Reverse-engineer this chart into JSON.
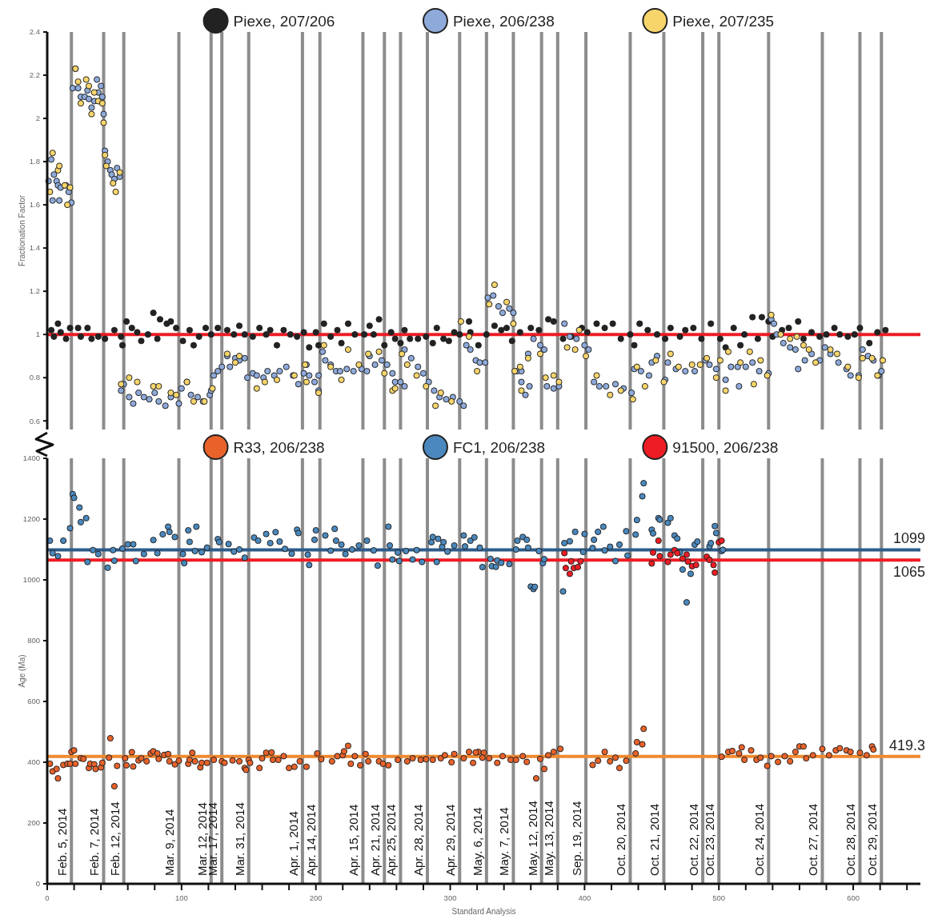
{
  "chart_data": [
    {
      "type": "scatter",
      "ylabel": "Fractionation Factor",
      "xlim": [
        0,
        650
      ],
      "ylim": [
        0.56,
        2.4
      ],
      "yticks": [
        0.6,
        0.8,
        1,
        1.2,
        1.4,
        1.6,
        1.8,
        2,
        2.2,
        2.4
      ],
      "tick_labels": "y",
      "marker": "circle",
      "legend": "top",
      "ref_lines": [
        {
          "axis": "x",
          "value": 18,
          "color": "#8c8c8c"
        },
        {
          "axis": "x",
          "value": 42,
          "color": "#8c8c8c"
        },
        {
          "axis": "x",
          "value": 57,
          "color": "#8c8c8c"
        },
        {
          "axis": "x",
          "value": 98,
          "color": "#8c8c8c"
        },
        {
          "axis": "x",
          "value": 122,
          "color": "#8c8c8c"
        },
        {
          "axis": "x",
          "value": 130,
          "color": "#8c8c8c"
        },
        {
          "axis": "x",
          "value": 150,
          "color": "#8c8c8c"
        },
        {
          "axis": "x",
          "value": 190,
          "color": "#8c8c8c"
        },
        {
          "axis": "x",
          "value": 203,
          "color": "#8c8c8c"
        },
        {
          "axis": "x",
          "value": 235,
          "color": "#8c8c8c"
        },
        {
          "axis": "x",
          "value": 251,
          "color": "#8c8c8c"
        },
        {
          "axis": "x",
          "value": 263,
          "color": "#8c8c8c"
        },
        {
          "axis": "x",
          "value": 283,
          "color": "#8c8c8c"
        },
        {
          "axis": "x",
          "value": 307,
          "color": "#8c8c8c"
        },
        {
          "axis": "x",
          "value": 327,
          "color": "#8c8c8c"
        },
        {
          "axis": "x",
          "value": 347,
          "color": "#8c8c8c"
        },
        {
          "axis": "x",
          "value": 368,
          "color": "#8c8c8c"
        },
        {
          "axis": "x",
          "value": 380,
          "color": "#8c8c8c"
        },
        {
          "axis": "x",
          "value": 401,
          "color": "#8c8c8c"
        },
        {
          "axis": "x",
          "value": 434,
          "color": "#8c8c8c"
        },
        {
          "axis": "x",
          "value": 459,
          "color": "#8c8c8c"
        },
        {
          "axis": "x",
          "value": 488,
          "color": "#8c8c8c"
        },
        {
          "axis": "x",
          "value": 500,
          "color": "#8c8c8c"
        },
        {
          "axis": "x",
          "value": 537,
          "color": "#8c8c8c"
        },
        {
          "axis": "x",
          "value": 577,
          "color": "#8c8c8c"
        },
        {
          "axis": "x",
          "value": 605,
          "color": "#8c8c8c"
        },
        {
          "axis": "x",
          "value": 621,
          "color": "#8c8c8c"
        },
        {
          "axis": "y",
          "value": 1,
          "color": "#ee1c24"
        }
      ],
      "series": [
        {
          "name": "Piexe, 207/206",
          "color": "#222222",
          "x": [
            3,
            5,
            8,
            10,
            14,
            17,
            23,
            25,
            30,
            33,
            38,
            43,
            50,
            55,
            56,
            59,
            63,
            67,
            70,
            75,
            79,
            82,
            84,
            89,
            92,
            96,
            101,
            106,
            109,
            113,
            118,
            122,
            127,
            134,
            139,
            143,
            147,
            153,
            158,
            163,
            166,
            171,
            176,
            181,
            186,
            191,
            195,
            200,
            202,
            206,
            211,
            216,
            219,
            224,
            229,
            236,
            240,
            243,
            247,
            251,
            256,
            259,
            263,
            266,
            270,
            276,
            282,
            287,
            290,
            295,
            299,
            303,
            307,
            314,
            315,
            321,
            327,
            333,
            338,
            342,
            346,
            352,
            360,
            366,
            373,
            377,
            384,
            390,
            398,
            402,
            409,
            415,
            421,
            427,
            434,
            437,
            441,
            447,
            454,
            460,
            464,
            471,
            475,
            481,
            487,
            494,
            501,
            505,
            511,
            516,
            519,
            525,
            529,
            532,
            537,
            540,
            547,
            552,
            559,
            563,
            569,
            575,
            580,
            586,
            590,
            596,
            601,
            605,
            612,
            618,
            624
          ],
          "values": [
            1.02,
            0.99,
            1.05,
            1.01,
            0.98,
            1.03,
            1.03,
            0.99,
            1.03,
            0.98,
            0.99,
            0.98,
            1.02,
            0.99,
            0.95,
            1.06,
            1.03,
            1.01,
            0.97,
            1.0,
            1.1,
            0.98,
            1.07,
            1.05,
            1.06,
            1.03,
            0.97,
            1.02,
            0.95,
            0.99,
            1.03,
            1.0,
            1.03,
            1.02,
            1.0,
            1.04,
            1.0,
            0.99,
            1.03,
            1.0,
            1.02,
            0.95,
            1.02,
            1.0,
            0.99,
            1.01,
            0.94,
            1.01,
            0.95,
            1.05,
            0.99,
            1.02,
            0.96,
            1.05,
            1.0,
            1.0,
            1.04,
            1.0,
            1.07,
            0.95,
            1.01,
            0.98,
            0.96,
            1.02,
            0.98,
            0.98,
            0.99,
            0.96,
            1.03,
            0.98,
            0.97,
            1.01,
            1.0,
            1.06,
            1.01,
            0.95,
            1.0,
            1.04,
            1.02,
            1.03,
            0.97,
            1.01,
            1.03,
            1.02,
            1.07,
            1.06,
            0.98,
            0.99,
            1.03,
            1.01,
            1.05,
            1.03,
            1.05,
            0.98,
            1.0,
            0.95,
            1.05,
            1.02,
            1.0,
            0.98,
            1.03,
            0.99,
            1.02,
            1.03,
            0.98,
            1.05,
            0.98,
            0.94,
            1.03,
            0.95,
            1.0,
            1.08,
            0.98,
            1.08,
            1.06,
            0.99,
            1.02,
            1.03,
            1.06,
            0.98,
            1.01,
            0.99,
            1.0,
            1.03,
            1.0,
            0.99,
            1.0,
            1.03,
            0.96,
            1.01,
            1.02
          ]
        },
        {
          "name": "Piexe, 206/238",
          "color": "#8eaadb",
          "x": [
            1,
            3,
            5,
            7,
            4,
            8,
            9,
            10,
            14,
            16,
            18,
            21,
            19,
            23,
            25,
            28,
            30,
            31,
            33,
            35,
            37,
            38,
            40,
            41,
            42,
            43,
            45,
            47,
            48,
            50,
            52,
            54,
            55,
            57,
            61,
            64,
            68,
            72,
            76,
            80,
            83,
            88,
            92,
            98,
            100,
            104,
            107,
            112,
            116,
            121,
            122,
            124,
            127,
            130,
            134,
            136,
            140,
            143,
            147,
            149,
            153,
            156,
            161,
            164,
            169,
            173,
            178,
            183,
            187,
            191,
            193,
            195,
            199,
            202,
            202,
            205,
            207,
            211,
            215,
            218,
            223,
            228,
            234,
            238,
            240,
            244,
            249,
            253,
            257,
            259,
            263,
            266,
            266,
            271,
            276,
            280,
            284,
            288,
            292,
            297,
            302,
            307,
            310,
            312,
            315,
            319,
            322,
            326,
            328,
            332,
            336,
            339,
            344,
            347,
            350,
            353,
            356,
            353,
            359,
            358,
            362,
            367,
            370,
            372,
            377,
            381,
            385,
            389,
            394,
            400,
            403,
            407,
            411,
            416,
            423,
            429,
            435,
            437,
            442,
            448,
            450,
            454,
            460,
            462,
            468,
            475,
            482,
            490,
            493,
            498,
            505,
            509,
            514,
            515,
            520,
            525,
            530,
            537,
            539,
            541,
            543,
            548,
            553,
            557,
            559,
            564,
            569,
            575,
            579,
            583,
            589,
            595,
            598,
            604,
            607,
            611,
            615,
            619,
            621
          ],
          "values": [
            1.71,
            1.81,
            1.74,
            1.71,
            1.62,
            1.69,
            1.62,
            1.68,
            1.69,
            1.66,
            1.61,
            2.23,
            2.14,
            2.14,
            2.1,
            2.1,
            2.13,
            2.09,
            2.05,
            2.08,
            2.18,
            2.12,
            2.15,
            2.1,
            2.02,
            1.85,
            1.8,
            1.76,
            1.74,
            1.72,
            1.77,
            1.73,
            0.74,
            0.77,
            0.71,
            0.68,
            0.73,
            0.71,
            0.7,
            0.73,
            0.69,
            0.67,
            0.71,
            0.68,
            0.75,
            0.78,
            0.72,
            0.71,
            0.69,
            0.72,
            0.74,
            0.81,
            0.83,
            0.85,
            0.9,
            0.85,
            0.89,
            0.88,
            0.89,
            0.8,
            0.82,
            0.81,
            0.8,
            0.83,
            0.81,
            0.83,
            0.85,
            0.81,
            0.77,
            0.82,
            0.86,
            0.81,
            0.78,
            0.81,
            0.74,
            0.92,
            0.88,
            0.86,
            0.83,
            0.83,
            0.84,
            0.83,
            0.84,
            0.83,
            0.9,
            0.86,
            0.88,
            0.86,
            0.82,
            0.78,
            0.78,
            0.76,
            0.93,
            0.89,
            0.85,
            0.82,
            0.78,
            0.74,
            0.71,
            0.7,
            0.71,
            0.69,
            0.67,
            0.95,
            0.93,
            0.88,
            0.87,
            0.87,
            1.17,
            1.18,
            1.13,
            1.1,
            1.12,
            1.1,
            0.83,
            0.83,
            0.72,
            0.78,
            0.76,
            0.91,
            0.98,
            0.95,
            0.93,
            0.76,
            0.75,
            0.76,
            1.05,
            0.99,
            0.98,
            0.95,
            0.93,
            0.78,
            0.76,
            0.76,
            0.77,
            0.75,
            0.73,
            0.84,
            0.83,
            0.81,
            0.87,
            0.9,
            0.79,
            0.87,
            0.84,
            0.83,
            0.83,
            0.88,
            0.86,
            0.84,
            0.79,
            0.85,
            0.85,
            0.76,
            0.85,
            0.87,
            0.83,
            0.82,
            1.07,
            1.05,
            1.0,
            0.96,
            0.94,
            0.93,
            0.84,
            0.88,
            0.91,
            0.88,
            0.94,
            0.91,
            0.87,
            0.84,
            0.81,
            0.81,
            0.93,
            0.9,
            0.88,
            0.81,
            0.83
          ]
        },
        {
          "name": "Piexe, 207/235",
          "color": "#f7d56b",
          "x": [
            4,
            2,
            8,
            9,
            13,
            15,
            17,
            21,
            23,
            25,
            29,
            31,
            33,
            35,
            38,
            41,
            42,
            43,
            44,
            49,
            51,
            54,
            55,
            61,
            67,
            79,
            83,
            92,
            96,
            104,
            109,
            117,
            123,
            134,
            140,
            143,
            156,
            162,
            171,
            184,
            192,
            193,
            202,
            206,
            211,
            219,
            224,
            232,
            239,
            247,
            251,
            257,
            259,
            264,
            268,
            275,
            282,
            289,
            293,
            301,
            308,
            314,
            320,
            329,
            333,
            342,
            347,
            348,
            352,
            353,
            358,
            367,
            371,
            377,
            381,
            387,
            393,
            396,
            401,
            409,
            419,
            427,
            436,
            439,
            445,
            453,
            459,
            464,
            470,
            480,
            486,
            491,
            498,
            501,
            505,
            507,
            516,
            523,
            526,
            531,
            536,
            539,
            546,
            553,
            558,
            563,
            567,
            572,
            583,
            588,
            596,
            604,
            607,
            614,
            618,
            622
          ],
          "values": [
            1.84,
            1.66,
            1.76,
            1.78,
            1.69,
            1.6,
            1.68,
            2.23,
            2.17,
            2.07,
            2.18,
            2.15,
            2.02,
            2.12,
            2.08,
            2.07,
            1.98,
            1.83,
            1.78,
            1.7,
            1.66,
            1.75,
            0.77,
            0.8,
            0.78,
            0.76,
            0.76,
            0.73,
            0.72,
            0.78,
            0.69,
            0.69,
            0.75,
            0.91,
            0.87,
            0.9,
            0.75,
            0.78,
            0.79,
            0.81,
            0.86,
            0.78,
            0.73,
            0.95,
            0.85,
            0.79,
            0.93,
            0.86,
            0.91,
            0.92,
            0.82,
            0.74,
            0.75,
            0.91,
            0.86,
            0.81,
            0.76,
            0.67,
            0.73,
            0.69,
            1.06,
            0.99,
            0.83,
            1.14,
            1.23,
            1.15,
            1.05,
            0.83,
            0.85,
            0.74,
            0.89,
            0.91,
            0.8,
            0.81,
            0.78,
            0.94,
            0.93,
            1.02,
            0.9,
            0.81,
            0.72,
            0.74,
            0.7,
            0.85,
            0.76,
            0.88,
            0.78,
            0.91,
            0.85,
            0.86,
            0.86,
            0.89,
            0.8,
            0.88,
            0.74,
            0.92,
            0.87,
            0.92,
            0.77,
            0.88,
            0.81,
            1.09,
            1.0,
            0.98,
            0.99,
            0.95,
            0.93,
            0.87,
            0.93,
            0.91,
            0.85,
            0.8,
            0.89,
            0.89,
            0.81,
            0.88
          ]
        }
      ]
    },
    {
      "type": "scatter",
      "xlabel": "Standard Analysis",
      "ylabel": "Age (Ma)",
      "xlim": [
        0,
        650
      ],
      "ylim": [
        0,
        1400
      ],
      "yticks": [
        0,
        200,
        400,
        600,
        800,
        1000,
        1200,
        1400
      ],
      "xticks": [
        0,
        {
          "value": 20,
          "label": null
        },
        {
          "value": 40,
          "label": null
        },
        {
          "value": 60,
          "label": null
        },
        {
          "value": 80,
          "label": null
        },
        100,
        {
          "value": 120,
          "label": null
        },
        {
          "value": 140,
          "label": null
        },
        {
          "value": 160,
          "label": null
        },
        {
          "value": 180,
          "label": null
        },
        200,
        {
          "value": 220,
          "label": null
        },
        {
          "value": 240,
          "label": null
        },
        {
          "value": 260,
          "label": null
        },
        {
          "value": 280,
          "label": null
        },
        300,
        {
          "value": 320,
          "label": null
        },
        {
          "value": 340,
          "label": null
        },
        {
          "value": 360,
          "label": null
        },
        {
          "value": 380,
          "label": null
        },
        400,
        {
          "value": 420,
          "label": null
        },
        {
          "value": 440,
          "label": null
        },
        {
          "value": 460,
          "label": null
        },
        {
          "value": 480,
          "label": null
        },
        500,
        {
          "value": 520,
          "label": null
        },
        {
          "value": 540,
          "label": null
        },
        {
          "value": 560,
          "label": null
        },
        {
          "value": 580,
          "label": null
        },
        600,
        {
          "value": 620,
          "label": null
        },
        {
          "value": 640,
          "label": null
        }
      ],
      "marker": "circle",
      "legend": "top",
      "ref_lines": [
        {
          "axis": "x",
          "value": 18,
          "label": "Feb. 5, 2014",
          "color": "#8c8c8c"
        },
        {
          "axis": "x",
          "value": 42,
          "label": "Feb. 7, 2014",
          "color": "#8c8c8c"
        },
        {
          "axis": "x",
          "value": 57,
          "label": "Feb. 12, 2014",
          "color": "#8c8c8c"
        },
        {
          "axis": "x",
          "value": 98,
          "label": "Mar. 9, 2014",
          "color": "#8c8c8c"
        },
        {
          "axis": "x",
          "value": 122,
          "label": "Mar. 12, 2014",
          "color": "#8c8c8c"
        },
        {
          "axis": "x",
          "value": 130,
          "label": "Mar. 17, 2014",
          "color": "#8c8c8c"
        },
        {
          "axis": "x",
          "value": 150,
          "label": "Mar. 31, 2014",
          "color": "#8c8c8c"
        },
        {
          "axis": "x",
          "value": 190,
          "label": "Apr. 1, 2014",
          "color": "#8c8c8c"
        },
        {
          "axis": "x",
          "value": 203,
          "label": "Apr. 14, 2014",
          "color": "#8c8c8c"
        },
        {
          "axis": "x",
          "value": 235,
          "label": "Apr. 15, 2014",
          "color": "#8c8c8c"
        },
        {
          "axis": "x",
          "value": 251,
          "label": "Apr. 21, 2014",
          "color": "#8c8c8c"
        },
        {
          "axis": "x",
          "value": 263,
          "label": "Apr. 25, 2014",
          "color": "#8c8c8c"
        },
        {
          "axis": "x",
          "value": 283,
          "label": "Apr. 28, 2014",
          "color": "#8c8c8c"
        },
        {
          "axis": "x",
          "value": 307,
          "label": "Apr. 29, 2014",
          "color": "#8c8c8c"
        },
        {
          "axis": "x",
          "value": 327,
          "label": "May. 6, 2014",
          "color": "#8c8c8c"
        },
        {
          "axis": "x",
          "value": 347,
          "label": "May. 7, 2014",
          "color": "#8c8c8c"
        },
        {
          "axis": "x",
          "value": 368,
          "label": "May. 12, 2014",
          "color": "#8c8c8c"
        },
        {
          "axis": "x",
          "value": 380,
          "label": "May. 13, 2014",
          "color": "#8c8c8c"
        },
        {
          "axis": "x",
          "value": 401,
          "label": "Sep. 19, 2014",
          "color": "#8c8c8c"
        },
        {
          "axis": "x",
          "value": 434,
          "label": "Oct. 20, 2014",
          "color": "#8c8c8c"
        },
        {
          "axis": "x",
          "value": 459,
          "label": "Oct. 21, 2014",
          "color": "#8c8c8c"
        },
        {
          "axis": "x",
          "value": 488,
          "label": "Oct. 22, 2014",
          "color": "#8c8c8c"
        },
        {
          "axis": "x",
          "value": 500,
          "label": "Oct. 23, 2014",
          "color": "#8c8c8c"
        },
        {
          "axis": "x",
          "value": 537,
          "label": "Oct. 24, 2014",
          "color": "#8c8c8c"
        },
        {
          "axis": "x",
          "value": 577,
          "label": "Oct. 27, 2014",
          "color": "#8c8c8c"
        },
        {
          "axis": "x",
          "value": 605,
          "label": "Oct. 28, 2014",
          "color": "#8c8c8c"
        },
        {
          "axis": "x",
          "value": 621,
          "label": "Oct. 29, 2014",
          "color": "#8c8c8c"
        },
        {
          "axis": "y",
          "value": 1099,
          "label": "1099",
          "color": "#2d5b8a"
        },
        {
          "axis": "y",
          "value": 1065,
          "label": "1065",
          "color": "#ee1c24"
        },
        {
          "axis": "y",
          "value": 419.3,
          "label": "419.3",
          "color": "#f0892f"
        }
      ],
      "series": [
        {
          "name": "R33, 206/238",
          "color": "#e8622a",
          "x": [
            2,
            4,
            7,
            8,
            12,
            15,
            17,
            18,
            20,
            21,
            25,
            27,
            31,
            32,
            35,
            36,
            40,
            41,
            46,
            47,
            50,
            52,
            58,
            59,
            63,
            64,
            68,
            70,
            74,
            77,
            79,
            82,
            83,
            87,
            90,
            91,
            95,
            98,
            105,
            106,
            108,
            110,
            114,
            115,
            119,
            124,
            130,
            132,
            138,
            143,
            147,
            148,
            150,
            151,
            158,
            160,
            163,
            167,
            168,
            172,
            176,
            180,
            184,
            188,
            193,
            201,
            204,
            212,
            216,
            220,
            221,
            224,
            226,
            229,
            233,
            237,
            239,
            247,
            250,
            254,
            261,
            268,
            272,
            278,
            282,
            287,
            293,
            296,
            301,
            303,
            310,
            317,
            321,
            325,
            314,
            319,
            324,
            329,
            335,
            339,
            345,
            349,
            354,
            357,
            364,
            367,
            370,
            373,
            377,
            382,
            406,
            410,
            415,
            419,
            423,
            426,
            431,
            438,
            439,
            443,
            444,
            502,
            507,
            510,
            515,
            517,
            519,
            524,
            528,
            531,
            536,
            539,
            544,
            549,
            553,
            557,
            560,
            563,
            565,
            570,
            577,
            582,
            587,
            590,
            595,
            598,
            605,
            610,
            614,
            615
          ],
          "values": [
            395,
            370,
            378,
            347,
            391,
            395,
            395,
            434,
            439,
            395,
            413,
            411,
            381,
            395,
            393,
            378,
            383,
            398,
            415,
            479,
            321,
            388,
            413,
            390,
            433,
            386,
            406,
            413,
            403,
            429,
            436,
            429,
            411,
            424,
            427,
            403,
            393,
            405,
            395,
            408,
            431,
            403,
            383,
            398,
            398,
            408,
            403,
            398,
            406,
            403,
            381,
            375,
            408,
            398,
            381,
            413,
            431,
            432,
            408,
            408,
            420,
            381,
            385,
            403,
            385,
            429,
            410,
            403,
            420,
            423,
            436,
            454,
            395,
            420,
            390,
            427,
            403,
            403,
            395,
            390,
            408,
            403,
            413,
            408,
            410,
            408,
            413,
            423,
            400,
            427,
            413,
            398,
            434,
            431,
            434,
            432,
            415,
            413,
            398,
            420,
            408,
            408,
            420,
            401,
            347,
            411,
            378,
            423,
            434,
            444,
            391,
            405,
            434,
            403,
            415,
            381,
            405,
            429,
            466,
            459,
            510,
            418,
            434,
            437,
            429,
            449,
            408,
            439,
            408,
            415,
            388,
            420,
            401,
            420,
            403,
            434,
            452,
            452,
            413,
            423,
            444,
            423,
            439,
            446,
            439,
            434,
            431,
            423,
            452,
            442
          ]
        },
        {
          "name": "FC1, 206/238",
          "color": "#4a88bd",
          "x": [
            2,
            4,
            8,
            12,
            17,
            19,
            20,
            24,
            25,
            29,
            30,
            34,
            38,
            45,
            49,
            50,
            56,
            60,
            64,
            66,
            72,
            79,
            82,
            86,
            90,
            91,
            95,
            101,
            102,
            105,
            106,
            110,
            111,
            115,
            119,
            127,
            128,
            135,
            139,
            143,
            147,
            154,
            157,
            163,
            166,
            170,
            173,
            177,
            182,
            186,
            187,
            194,
            195,
            199,
            200,
            207,
            211,
            214,
            215,
            219,
            222,
            227,
            232,
            238,
            243,
            246,
            254,
            255,
            257,
            261,
            262,
            267,
            272,
            275,
            279,
            286,
            287,
            290,
            291,
            294,
            295,
            298,
            303,
            310,
            311,
            315,
            318,
            322,
            324,
            330,
            331,
            334,
            335,
            338,
            344,
            349,
            350,
            354,
            357,
            358,
            360,
            362,
            363,
            366,
            369,
            370,
            384,
            385,
            389,
            393,
            399,
            400,
            406,
            407,
            410,
            414,
            415,
            419,
            423,
            426,
            431,
            432,
            438,
            439,
            443,
            444,
            450,
            451,
            455,
            456,
            462,
            464,
            467,
            469,
            471,
            473,
            476,
            479,
            482,
            484,
            493,
            494,
            497,
            498,
            502,
            503
          ],
          "values": [
            1129,
            1088,
            1078,
            1129,
            1170,
            1282,
            1270,
            1238,
            1190,
            1203,
            1059,
            1098,
            1085,
            1040,
            1098,
            1063,
            1103,
            1117,
            1117,
            1062,
            1085,
            1131,
            1088,
            1150,
            1175,
            1158,
            1141,
            1085,
            1055,
            1163,
            1125,
            1095,
            1175,
            1091,
            1106,
            1134,
            1124,
            1118,
            1093,
            1100,
            1073,
            1139,
            1129,
            1151,
            1121,
            1157,
            1126,
            1102,
            1086,
            1165,
            1154,
            1083,
            1049,
            1132,
            1163,
            1146,
            1096,
            1168,
            1129,
            1116,
            1085,
            1100,
            1113,
            1129,
            1097,
            1047,
            1175,
            1113,
            1067,
            1090,
            1062,
            1095,
            1067,
            1098,
            1059,
            1124,
            1141,
            1059,
            1135,
            1109,
            1124,
            1093,
            1113,
            1146,
            1110,
            1129,
            1140,
            1106,
            1042,
            1069,
            1045,
            1043,
            1064,
            1056,
            1052,
            1100,
            1129,
            1141,
            1132,
            1106,
            978,
            970,
            977,
            1095,
            1055,
            1068,
            962,
            1121,
            1127,
            1158,
            1092,
            1151,
            1105,
            1132,
            1158,
            1175,
            1097,
            1109,
            1062,
            1116,
            1160,
            1080,
            1149,
            1197,
            1275,
            1318,
            1165,
            1153,
            1203,
            1198,
            1188,
            1203,
            1146,
            1136,
            1090,
            1034,
            926,
            1020,
            1116,
            1126,
            1110,
            1121,
            1177,
            1154,
            1095,
            1099
          ]
        },
        {
          "name": "91500, 206/238",
          "color": "#ee1c24",
          "x": [
            385,
            386,
            389,
            390,
            392,
            395,
            397,
            450,
            451,
            455,
            456,
            462,
            464,
            467,
            469,
            473,
            476,
            477,
            480,
            483,
            491,
            493,
            496,
            497,
            500,
            502
          ],
          "values": [
            1088,
            1039,
            1020,
            1061,
            1039,
            1042,
            1061,
            1054,
            1090,
            1129,
            1078,
            1059,
            1083,
            1098,
            1088,
            1070,
            1083,
            1060,
            1045,
            1049,
            1076,
            1066,
            1049,
            1024,
            1124,
            1129
          ]
        }
      ]
    }
  ]
}
